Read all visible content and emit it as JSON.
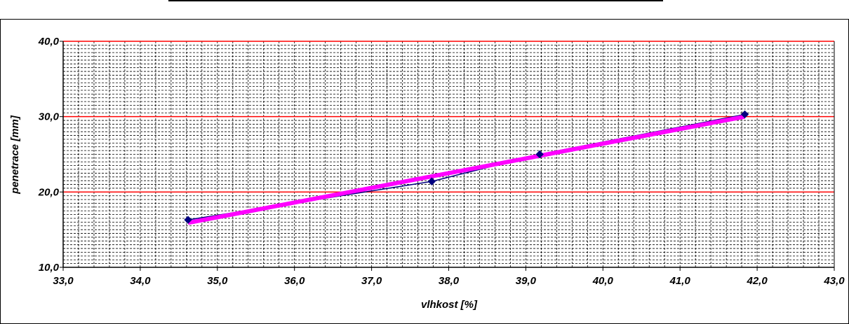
{
  "chart_data": {
    "type": "line",
    "title": "",
    "xlabel": "vlhkost [%]",
    "ylabel": "penetrace [mm]",
    "xlim": [
      33.0,
      43.0
    ],
    "ylim": [
      10.0,
      40.0
    ],
    "x_ticks": [
      "33,0",
      "34,0",
      "35,0",
      "36,0",
      "37,0",
      "38,0",
      "39,0",
      "40,0",
      "41,0",
      "42,0",
      "43,0"
    ],
    "y_ticks": [
      "10,0",
      "20,0",
      "30,0",
      "40,0"
    ],
    "grid": true,
    "legend": "none",
    "series": [
      {
        "points": [
          [
            34.62,
            16.3
          ],
          [
            37.78,
            21.4
          ],
          [
            39.18,
            25.0
          ],
          [
            41.84,
            30.3
          ]
        ],
        "color": "#000080",
        "marker": "diamond",
        "line_width": 1.5
      },
      {
        "points": [
          [
            34.62,
            15.9
          ],
          [
            41.84,
            30.0
          ]
        ],
        "color": "#ff00ff",
        "marker": "none",
        "line_width": 6
      }
    ],
    "colors": {
      "major_grid": "#ff0000",
      "minor_grid": "#000000",
      "axis": "#000000"
    }
  }
}
